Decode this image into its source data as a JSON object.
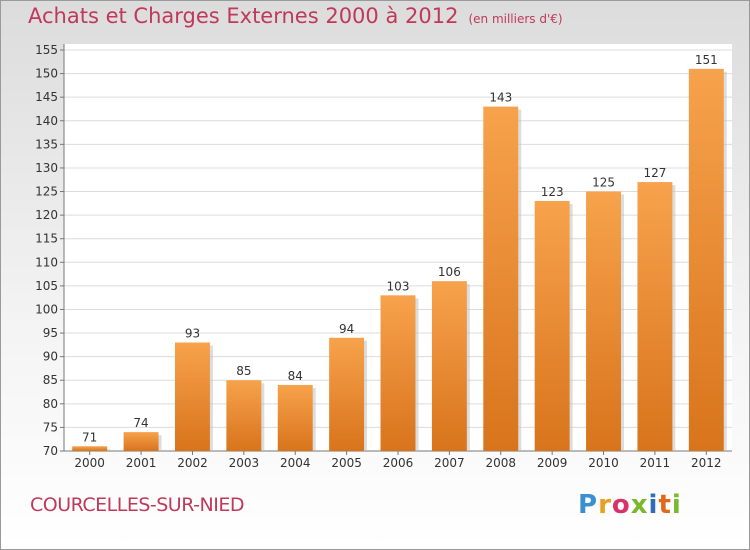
{
  "chart_data": {
    "type": "bar",
    "title": "Achats et Charges Externes 2000 à 2012",
    "unit": "(en milliers d'€)",
    "categories": [
      "2000",
      "2001",
      "2002",
      "2003",
      "2004",
      "2005",
      "2006",
      "2007",
      "2008",
      "2009",
      "2010",
      "2011",
      "2012"
    ],
    "values": [
      71,
      74,
      93,
      85,
      84,
      94,
      103,
      106,
      143,
      123,
      125,
      127,
      151
    ],
    "ylim": [
      70,
      155
    ],
    "yticks": [
      70,
      75,
      80,
      85,
      90,
      95,
      100,
      105,
      110,
      115,
      120,
      125,
      130,
      135,
      140,
      145,
      150,
      155
    ],
    "bar_color": "#f0902c",
    "grid": true
  },
  "footer": {
    "place": "COURCELLES-SUR-NIED",
    "logo": "Proxiti"
  }
}
